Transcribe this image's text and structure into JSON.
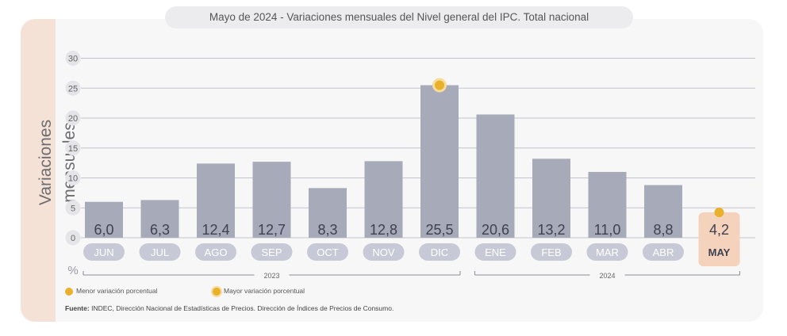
{
  "title": "Mayo de 2024 - Variaciones mensuales del Nivel general del IPC. Total nacional",
  "ylabel": "Variaciones mensuales",
  "unit_label": "%",
  "legend": {
    "min_label": "Menor variación porcentual",
    "max_label": "Mayor variación porcentual"
  },
  "year_groups": [
    {
      "label": "2023",
      "from": "JUN",
      "to": "DIC"
    },
    {
      "label": "2024",
      "from": "ENE",
      "to": "MAY"
    }
  ],
  "source": {
    "label": "Fuente:",
    "text": "INDEC, Dirección Nacional de Estadísticas de Precios. Dirección de Índices de Precios de Consumo."
  },
  "colors": {
    "bar": "#a7abb9",
    "highlight_bar": "#f4d2bc",
    "marker": "#e9b12b",
    "grid": "#c3c3cc",
    "month_pill": "#c7cad6",
    "highlight_pill": "#f2cdb5"
  },
  "chart_data": {
    "type": "bar",
    "categories": [
      "JUN",
      "JUL",
      "AGO",
      "SEP",
      "OCT",
      "NOV",
      "DIC",
      "ENE",
      "FEB",
      "MAR",
      "ABR",
      "MAY"
    ],
    "values": [
      6.0,
      6.3,
      12.4,
      12.7,
      8.3,
      12.8,
      25.5,
      20.6,
      13.2,
      11.0,
      8.8,
      4.2
    ],
    "value_labels": [
      "6,0",
      "6,3",
      "12,4",
      "12,7",
      "8,3",
      "12,8",
      "25,5",
      "20,6",
      "13,2",
      "11,0",
      "8,8",
      "4,2"
    ],
    "yticks": [
      0,
      5,
      10,
      15,
      20,
      25,
      30
    ],
    "ylim": [
      0,
      30
    ],
    "grid": true,
    "highlight": {
      "max": "DIC",
      "min": "MAY"
    }
  }
}
